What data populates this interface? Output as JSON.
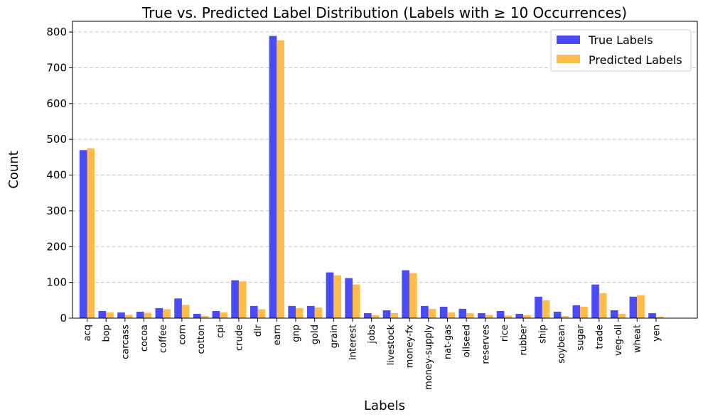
{
  "chart_data": {
    "type": "bar",
    "title": "True vs. Predicted Label Distribution (Labels with ≥ 10 Occurrences)",
    "xlabel": "Labels",
    "ylabel": "Count",
    "ylim": [
      0,
      830
    ],
    "yticks": [
      0,
      100,
      200,
      300,
      400,
      500,
      600,
      700,
      800
    ],
    "grid": "y-dashed",
    "legend_position": "top-right",
    "categories": [
      "acq",
      "bop",
      "carcass",
      "cocoa",
      "coffee",
      "corn",
      "cotton",
      "cpi",
      "crude",
      "dlr",
      "earn",
      "gnp",
      "gold",
      "grain",
      "interest",
      "jobs",
      "livestock",
      "money-fx",
      "money-supply",
      "nat-gas",
      "oilseed",
      "reserves",
      "rice",
      "rubber",
      "ship",
      "soybean",
      "sugar",
      "trade",
      "veg-oil",
      "wheat",
      "yen"
    ],
    "series": [
      {
        "name": "True Labels",
        "color": "#4b4bf6",
        "values": [
          470,
          20,
          16,
          18,
          28,
          55,
          12,
          20,
          106,
          34,
          789,
          34,
          34,
          128,
          112,
          14,
          22,
          134,
          34,
          32,
          26,
          14,
          20,
          12,
          60,
          18,
          36,
          94,
          22,
          60,
          14
        ]
      },
      {
        "name": "Predicted Labels",
        "color": "#fdbd4c",
        "values": [
          475,
          16,
          9,
          15,
          25,
          37,
          6,
          16,
          103,
          25,
          777,
          28,
          30,
          120,
          94,
          8,
          14,
          126,
          26,
          16,
          14,
          9,
          7,
          8,
          50,
          6,
          32,
          70,
          12,
          64,
          4
        ]
      }
    ]
  }
}
